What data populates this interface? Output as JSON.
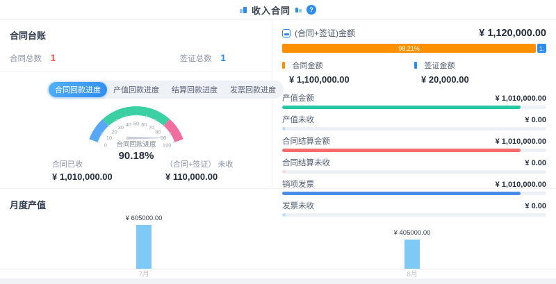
{
  "header": {
    "title": "收入合同",
    "help_label": "?"
  },
  "ledger": {
    "title": "合同台账",
    "stats": [
      {
        "label": "合同总数",
        "value": "1",
        "color": "#f5554a"
      },
      {
        "label": "签证总数",
        "value": "1",
        "color": "#2d8cf0"
      }
    ]
  },
  "tabs": [
    {
      "label": "合同回款进度",
      "active": true
    },
    {
      "label": "产值回款进度",
      "active": false
    },
    {
      "label": "结算回款进度",
      "active": false
    },
    {
      "label": "发票回款进度",
      "active": false
    }
  ],
  "gauge_stats": [
    {
      "label": "合同已收",
      "value": "¥ 1,010,000.00"
    },
    {
      "label": "（合同+签证） 未收",
      "value": "¥ 110,000.00"
    }
  ],
  "summary": {
    "title": "(合同+签证)金额",
    "total": "¥ 1,120,000.00",
    "bar": {
      "primary_label": "98.21%",
      "primary_pct": 98.21,
      "primary_color": "#ff9100",
      "secondary_display": "1.",
      "secondary_pct": 1.79,
      "secondary_color": "#2d8cf0"
    },
    "legend": [
      {
        "label": "合同金额",
        "value": "¥ 1,100,000.00",
        "color": "#ff9100"
      },
      {
        "label": "签证金额",
        "value": "¥ 20,000.00",
        "color": "#2d8cf0"
      }
    ]
  },
  "detail_rows": [
    {
      "label": "产值金额",
      "value": "¥ 1,010,000.00",
      "pct": 90.2,
      "color": "#27c8a4"
    },
    {
      "label": "产值未收",
      "value": "¥ 0.00",
      "pct": 1.2,
      "color": "#bfe0fa"
    },
    {
      "label": "合同结算金额",
      "value": "¥ 1,010,000.00",
      "pct": 90.2,
      "color": "#f56c6c"
    },
    {
      "label": "合同结算未收",
      "value": "¥ 0.00",
      "pct": 1.2,
      "color": "#f9d9de"
    },
    {
      "label": "销项发票",
      "value": "¥ 1,010,000.00",
      "pct": 90.2,
      "color": "#4a8ce8"
    },
    {
      "label": "发票未收",
      "value": "¥ 0.00",
      "pct": 1.2,
      "color": "#bfe0fa"
    }
  ],
  "monthly": {
    "title": "月度产值"
  },
  "chart_data": [
    {
      "type": "gauge",
      "title": "合同回款进度",
      "value": 90.18,
      "display": "90.18%",
      "min": 0,
      "max": 100,
      "tick_interval": 10,
      "start_angle": 160,
      "end_angle": 20,
      "segments": [
        {
          "from": 0,
          "to": 20,
          "color": "#57a9f7"
        },
        {
          "from": 20,
          "to": 80,
          "color": "#3bcfa4"
        },
        {
          "from": 80,
          "to": 100,
          "color": "#f06fa0"
        }
      ],
      "needle_color": "#c9ced8"
    },
    {
      "type": "bar",
      "title": "月度产值",
      "categories": [
        "7月",
        "8月"
      ],
      "values": [
        605000,
        405000
      ],
      "data_labels": [
        "¥ 605000.00",
        "¥ 405000.00"
      ],
      "bar_color": "#7fc9f7",
      "ylim": [
        0,
        650000
      ]
    }
  ]
}
